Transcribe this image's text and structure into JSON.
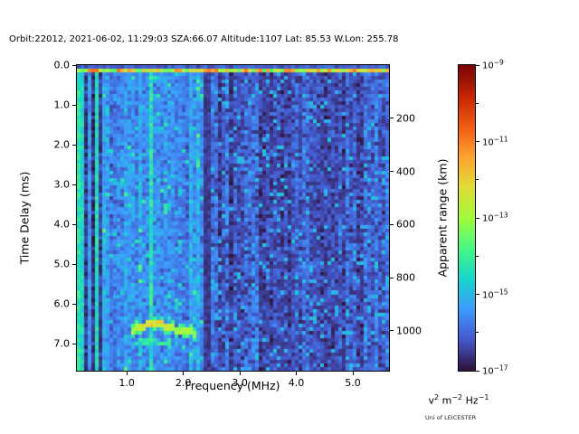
{
  "title": "Orbit:22012, 2021-06-02, 11:29:03 SZA:66.07 Altitude:1107 Lat: 85.53 W.Lon: 255.78",
  "footer": {
    "credit": "Uni of LEICESTER"
  },
  "chart_data": {
    "type": "heatmap",
    "title": "Orbit:22012, 2021-06-02, 11:29:03 SZA:66.07 Altitude:1107 Lat: 85.53 W.Lon: 255.78",
    "xlabel": "Frequency (MHz)",
    "ylabel": "Time Delay (ms)",
    "y2label": "Apparent range (km)",
    "x_range_mhz": [
      0.117,
      5.64
    ],
    "y_range_ms": [
      0.0,
      7.67
    ],
    "x_ticks": [
      {
        "value": 1.0,
        "label": "1.0"
      },
      {
        "value": 2.0,
        "label": "2.0"
      },
      {
        "value": 3.0,
        "label": "3.0"
      },
      {
        "value": 4.0,
        "label": "4.0"
      },
      {
        "value": 5.0,
        "label": "5.0"
      }
    ],
    "y_ticks": [
      {
        "value": 0.0,
        "label": "0.0"
      },
      {
        "value": 1.0,
        "label": "1.0"
      },
      {
        "value": 2.0,
        "label": "2.0"
      },
      {
        "value": 3.0,
        "label": "3.0"
      },
      {
        "value": 4.0,
        "label": "4.0"
      },
      {
        "value": 5.0,
        "label": "5.0"
      },
      {
        "value": 6.0,
        "label": "6.0"
      },
      {
        "value": 7.0,
        "label": "7.0"
      }
    ],
    "y2_ticks_km": [
      {
        "value": 200,
        "label": "200"
      },
      {
        "value": 400,
        "label": "400"
      },
      {
        "value": 600,
        "label": "600"
      },
      {
        "value": 800,
        "label": "800"
      },
      {
        "value": 1000,
        "label": "1000"
      }
    ],
    "km_per_ms": 150,
    "colorbar": {
      "scale": "log",
      "tick_base": "10",
      "major_ticks": [
        {
          "exp": -9,
          "label": "−9"
        },
        {
          "exp": -11,
          "label": "−11"
        },
        {
          "exp": -13,
          "label": "−13"
        },
        {
          "exp": -15,
          "label": "−15"
        },
        {
          "exp": -17,
          "label": "−17"
        }
      ],
      "minor_ticks_exp": [
        -10,
        -12,
        -14,
        -16
      ],
      "unit_tokens": [
        {
          "text": "v"
        },
        {
          "text": "2",
          "sup": true
        },
        {
          "text": " m"
        },
        {
          "text": "−2",
          "sup": true
        },
        {
          "text": " Hz"
        },
        {
          "text": "−1",
          "sup": true
        }
      ],
      "colormap_name": "turbo",
      "colormap_stops": [
        [
          0.0,
          "#30123b"
        ],
        [
          0.1,
          "#4458cb"
        ],
        [
          0.2,
          "#3e9bfe"
        ],
        [
          0.3,
          "#18d6cb"
        ],
        [
          0.4,
          "#46f884"
        ],
        [
          0.5,
          "#a2fc3c"
        ],
        [
          0.6,
          "#e1dd37"
        ],
        [
          0.7,
          "#fea331"
        ],
        [
          0.8,
          "#f05b12"
        ],
        [
          0.9,
          "#c42503"
        ],
        [
          1.0,
          "#7a0403"
        ]
      ]
    },
    "features": {
      "seed": 22012,
      "grid": {
        "cols": 86,
        "rows": 84
      },
      "background": {
        "split_mhz": 2.42,
        "left_base": 0.18,
        "left_noise": 0.09,
        "left_bright_speck_prob": 0.06,
        "left_bright_speck_boost": 0.13,
        "right_base": 0.11,
        "right_noise": 0.08,
        "right_dark_speck_prob": 0.13,
        "right_dark_value": 0.045,
        "right_bright_speck_prob": 0.07,
        "right_bright_value": 0.22,
        "column_streak_amp": 0.05
      },
      "top_dark_row": {
        "to_ms": 0.09,
        "value": 0.07
      },
      "top_band": {
        "from_ms": 0.09,
        "to_ms": 0.21,
        "value": 0.55,
        "variation": 0.18
      },
      "low_freq_columns": [
        {
          "mhz": 0.15,
          "value": 0.34
        },
        {
          "mhz": 0.21,
          "value": 0.3
        },
        {
          "mhz": 0.28,
          "value": 0.06
        },
        {
          "mhz": 0.34,
          "value": 0.2
        },
        {
          "mhz": 0.41,
          "value": 0.05
        },
        {
          "mhz": 0.47,
          "value": 0.32
        },
        {
          "mhz": 0.55,
          "value": 0.07
        }
      ],
      "cyan_line": {
        "mhz": 1.45,
        "value": 0.33
      },
      "dark_band": {
        "from_mhz": 2.36,
        "to_mhz": 2.48,
        "value": 0.035
      },
      "echo_trace": {
        "from_mhz": 1.05,
        "to_mhz": 2.25,
        "t_base_ms": 6.73,
        "dip_ms": 0.24,
        "dip_center_mhz": 1.5,
        "dip_width_mhz": 0.42,
        "value": 0.48,
        "center_boost": 0.12,
        "half_width_ms": 0.09
      },
      "echo_trace2": {
        "from_mhz": 1.15,
        "to_mhz": 1.8,
        "t_ms": 6.98,
        "value": 0.35,
        "prob": 0.5
      }
    }
  }
}
